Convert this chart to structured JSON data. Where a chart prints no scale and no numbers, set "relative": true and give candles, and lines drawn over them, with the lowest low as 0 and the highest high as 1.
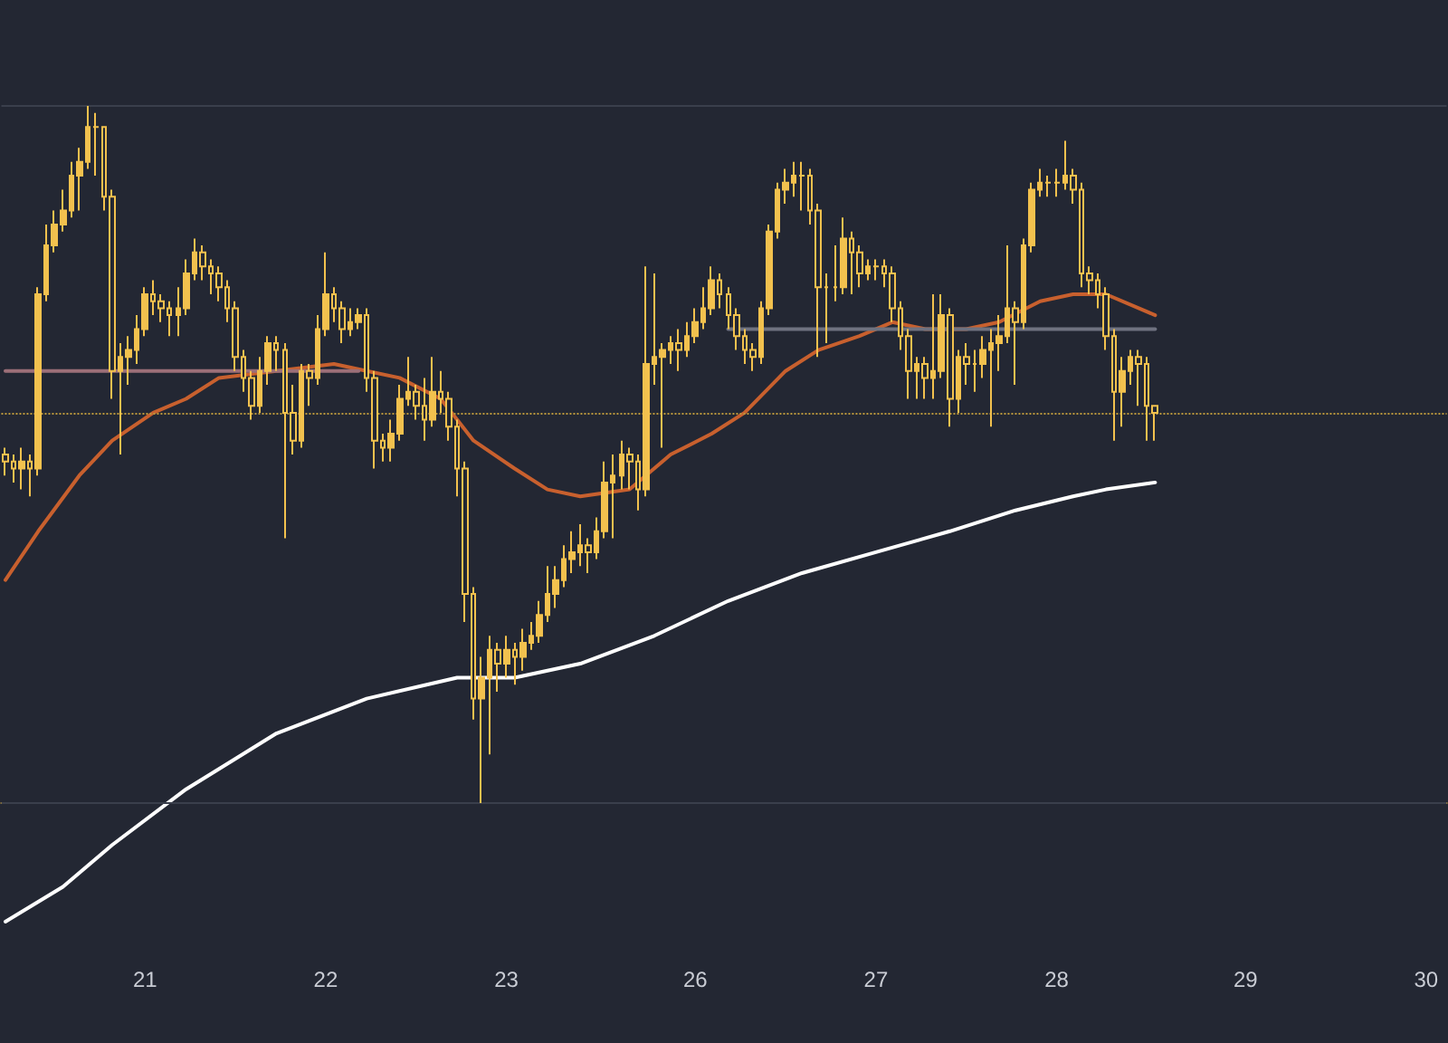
{
  "chart_data": {
    "type": "candlestick",
    "relative": true,
    "categories": [
      null,
      null,
      null,
      null,
      null,
      null,
      null,
      null,
      null,
      null,
      null,
      null,
      null,
      null,
      null,
      null,
      null,
      "21",
      null,
      null,
      null,
      null,
      null,
      null,
      null,
      null,
      null,
      null,
      null,
      null,
      null,
      null,
      null,
      null,
      null,
      null,
      null,
      null,
      null,
      "22",
      null,
      null,
      null,
      null,
      null,
      null,
      null,
      null,
      null,
      null,
      null,
      null,
      null,
      null,
      null,
      null,
      null,
      null,
      null,
      null,
      null,
      "23",
      null,
      null,
      null,
      null,
      null,
      null,
      null,
      null,
      null,
      null,
      null,
      null,
      null,
      null,
      null,
      null,
      null,
      null,
      null,
      null,
      null,
      null,
      "26",
      null,
      null,
      null,
      null,
      null,
      null,
      null,
      null,
      null,
      null,
      null,
      null,
      null,
      null,
      null,
      null,
      null,
      null,
      null,
      null,
      null,
      "27",
      null,
      null,
      null,
      null,
      null,
      null,
      null,
      null,
      null,
      null,
      null,
      null,
      null,
      null,
      null,
      null,
      null,
      null,
      null,
      null,
      null,
      "28",
      null,
      null,
      null,
      null,
      null,
      null,
      null,
      null,
      null,
      null,
      null,
      null,
      null,
      null,
      null,
      null,
      null,
      null,
      null,
      null,
      null,
      null,
      "29",
      null,
      null,
      null,
      null,
      null,
      null,
      null,
      null,
      null,
      null,
      null,
      null,
      null,
      null,
      null,
      null,
      null,
      null,
      null,
      null,
      null,
      "30",
      null,
      null
    ],
    "ohlc": [
      [
        0.5,
        0.51,
        0.47,
        0.49
      ],
      [
        0.49,
        0.5,
        0.46,
        0.48
      ],
      [
        0.48,
        0.51,
        0.45,
        0.49
      ],
      [
        0.49,
        0.5,
        0.44,
        0.48
      ],
      [
        0.48,
        0.74,
        0.47,
        0.73
      ],
      [
        0.73,
        0.83,
        0.72,
        0.8
      ],
      [
        0.8,
        0.85,
        0.79,
        0.83
      ],
      [
        0.83,
        0.88,
        0.82,
        0.85
      ],
      [
        0.85,
        0.92,
        0.84,
        0.9
      ],
      [
        0.9,
        0.94,
        0.85,
        0.92
      ],
      [
        0.92,
        1.0,
        0.91,
        0.97
      ],
      [
        0.97,
        0.99,
        0.9,
        0.97
      ],
      [
        0.97,
        0.97,
        0.85,
        0.87
      ],
      [
        0.87,
        0.88,
        0.58,
        0.62
      ],
      [
        0.62,
        0.66,
        0.5,
        0.64
      ],
      [
        0.64,
        0.67,
        0.6,
        0.65
      ],
      [
        0.65,
        0.7,
        0.63,
        0.68
      ],
      [
        0.68,
        0.74,
        0.67,
        0.73
      ],
      [
        0.73,
        0.75,
        0.7,
        0.72
      ],
      [
        0.72,
        0.73,
        0.69,
        0.71
      ],
      [
        0.71,
        0.72,
        0.67,
        0.7
      ],
      [
        0.7,
        0.74,
        0.67,
        0.71
      ],
      [
        0.71,
        0.78,
        0.7,
        0.76
      ],
      [
        0.76,
        0.81,
        0.75,
        0.79
      ],
      [
        0.79,
        0.8,
        0.75,
        0.77
      ],
      [
        0.77,
        0.78,
        0.73,
        0.76
      ],
      [
        0.76,
        0.77,
        0.72,
        0.74
      ],
      [
        0.74,
        0.75,
        0.69,
        0.71
      ],
      [
        0.71,
        0.72,
        0.62,
        0.64
      ],
      [
        0.64,
        0.65,
        0.59,
        0.61
      ],
      [
        0.61,
        0.62,
        0.55,
        0.57
      ],
      [
        0.57,
        0.64,
        0.56,
        0.62
      ],
      [
        0.62,
        0.67,
        0.6,
        0.66
      ],
      [
        0.66,
        0.67,
        0.62,
        0.65
      ],
      [
        0.65,
        0.66,
        0.38,
        0.56
      ],
      [
        0.56,
        0.6,
        0.5,
        0.52
      ],
      [
        0.52,
        0.63,
        0.51,
        0.62
      ],
      [
        0.62,
        0.63,
        0.57,
        0.61
      ],
      [
        0.61,
        0.7,
        0.6,
        0.68
      ],
      [
        0.68,
        0.79,
        0.67,
        0.73
      ],
      [
        0.73,
        0.74,
        0.69,
        0.71
      ],
      [
        0.71,
        0.72,
        0.66,
        0.68
      ],
      [
        0.68,
        0.71,
        0.67,
        0.69
      ],
      [
        0.69,
        0.71,
        0.68,
        0.7
      ],
      [
        0.7,
        0.71,
        0.59,
        0.61
      ],
      [
        0.61,
        0.62,
        0.48,
        0.52
      ],
      [
        0.52,
        0.53,
        0.49,
        0.51
      ],
      [
        0.51,
        0.55,
        0.49,
        0.53
      ],
      [
        0.53,
        0.6,
        0.52,
        0.58
      ],
      [
        0.58,
        0.64,
        0.57,
        0.59
      ],
      [
        0.59,
        0.6,
        0.55,
        0.57
      ],
      [
        0.57,
        0.61,
        0.52,
        0.55
      ],
      [
        0.55,
        0.64,
        0.54,
        0.59
      ],
      [
        0.59,
        0.62,
        0.56,
        0.58
      ],
      [
        0.58,
        0.59,
        0.52,
        0.54
      ],
      [
        0.54,
        0.55,
        0.44,
        0.48
      ],
      [
        0.48,
        0.49,
        0.26,
        0.3
      ],
      [
        0.3,
        0.31,
        0.12,
        0.15
      ],
      [
        0.15,
        0.21,
        0.0,
        0.18
      ],
      [
        0.18,
        0.24,
        0.07,
        0.22
      ],
      [
        0.22,
        0.23,
        0.16,
        0.2
      ],
      [
        0.2,
        0.24,
        0.18,
        0.22
      ],
      [
        0.22,
        0.23,
        0.17,
        0.21
      ],
      [
        0.21,
        0.25,
        0.19,
        0.23
      ],
      [
        0.23,
        0.26,
        0.22,
        0.24
      ],
      [
        0.24,
        0.29,
        0.23,
        0.27
      ],
      [
        0.27,
        0.34,
        0.26,
        0.3
      ],
      [
        0.3,
        0.34,
        0.28,
        0.32
      ],
      [
        0.32,
        0.37,
        0.31,
        0.35
      ],
      [
        0.35,
        0.39,
        0.33,
        0.36
      ],
      [
        0.36,
        0.4,
        0.34,
        0.37
      ],
      [
        0.37,
        0.38,
        0.33,
        0.36
      ],
      [
        0.36,
        0.41,
        0.35,
        0.39
      ],
      [
        0.39,
        0.49,
        0.38,
        0.46
      ],
      [
        0.46,
        0.5,
        0.38,
        0.47
      ],
      [
        0.47,
        0.52,
        0.45,
        0.5
      ],
      [
        0.5,
        0.51,
        0.45,
        0.49
      ],
      [
        0.49,
        0.5,
        0.42,
        0.45
      ],
      [
        0.45,
        0.77,
        0.44,
        0.63
      ],
      [
        0.63,
        0.76,
        0.6,
        0.64
      ],
      [
        0.64,
        0.66,
        0.51,
        0.65
      ],
      [
        0.65,
        0.67,
        0.63,
        0.66
      ],
      [
        0.66,
        0.68,
        0.62,
        0.65
      ],
      [
        0.65,
        0.69,
        0.64,
        0.67
      ],
      [
        0.67,
        0.71,
        0.66,
        0.69
      ],
      [
        0.69,
        0.74,
        0.68,
        0.71
      ],
      [
        0.71,
        0.77,
        0.7,
        0.75
      ],
      [
        0.75,
        0.76,
        0.71,
        0.73
      ],
      [
        0.73,
        0.74,
        0.68,
        0.7
      ],
      [
        0.7,
        0.71,
        0.65,
        0.67
      ],
      [
        0.67,
        0.68,
        0.63,
        0.65
      ],
      [
        0.65,
        0.66,
        0.62,
        0.64
      ],
      [
        0.64,
        0.72,
        0.63,
        0.71
      ],
      [
        0.71,
        0.83,
        0.7,
        0.82
      ],
      [
        0.82,
        0.89,
        0.81,
        0.88
      ],
      [
        0.88,
        0.91,
        0.86,
        0.89
      ],
      [
        0.89,
        0.92,
        0.87,
        0.9
      ],
      [
        0.9,
        0.92,
        0.85,
        0.9
      ],
      [
        0.9,
        0.91,
        0.83,
        0.85
      ],
      [
        0.85,
        0.86,
        0.64,
        0.74
      ],
      [
        0.74,
        0.76,
        0.66,
        0.74
      ],
      [
        0.74,
        0.8,
        0.72,
        0.74
      ],
      [
        0.74,
        0.84,
        0.73,
        0.81
      ],
      [
        0.81,
        0.82,
        0.73,
        0.79
      ],
      [
        0.79,
        0.8,
        0.74,
        0.76
      ],
      [
        0.76,
        0.78,
        0.75,
        0.77
      ],
      [
        0.77,
        0.78,
        0.75,
        0.77
      ],
      [
        0.77,
        0.78,
        0.74,
        0.76
      ],
      [
        0.76,
        0.77,
        0.69,
        0.71
      ],
      [
        0.71,
        0.72,
        0.65,
        0.67
      ],
      [
        0.67,
        0.68,
        0.58,
        0.62
      ],
      [
        0.62,
        0.64,
        0.58,
        0.63
      ],
      [
        0.63,
        0.64,
        0.58,
        0.61
      ],
      [
        0.61,
        0.73,
        0.58,
        0.62
      ],
      [
        0.62,
        0.73,
        0.61,
        0.7
      ],
      [
        0.7,
        0.71,
        0.54,
        0.58
      ],
      [
        0.58,
        0.65,
        0.56,
        0.64
      ],
      [
        0.64,
        0.66,
        0.6,
        0.63
      ],
      [
        0.63,
        0.65,
        0.59,
        0.63
      ],
      [
        0.63,
        0.67,
        0.61,
        0.65
      ],
      [
        0.65,
        0.68,
        0.54,
        0.66
      ],
      [
        0.66,
        0.7,
        0.62,
        0.67
      ],
      [
        0.67,
        0.8,
        0.66,
        0.71
      ],
      [
        0.71,
        0.72,
        0.6,
        0.69
      ],
      [
        0.69,
        0.81,
        0.68,
        0.8
      ],
      [
        0.8,
        0.89,
        0.79,
        0.88
      ],
      [
        0.88,
        0.91,
        0.87,
        0.89
      ],
      [
        0.89,
        0.9,
        0.87,
        0.89
      ],
      [
        0.89,
        0.91,
        0.87,
        0.89
      ],
      [
        0.89,
        0.95,
        0.88,
        0.9
      ],
      [
        0.9,
        0.91,
        0.86,
        0.88
      ],
      [
        0.88,
        0.89,
        0.74,
        0.76
      ],
      [
        0.76,
        0.77,
        0.73,
        0.75
      ],
      [
        0.75,
        0.76,
        0.71,
        0.73
      ],
      [
        0.73,
        0.74,
        0.65,
        0.67
      ],
      [
        0.67,
        0.68,
        0.52,
        0.59
      ],
      [
        0.59,
        0.64,
        0.54,
        0.62
      ],
      [
        0.62,
        0.65,
        0.6,
        0.64
      ],
      [
        0.64,
        0.65,
        0.57,
        0.63
      ],
      [
        0.63,
        0.64,
        0.52,
        0.57
      ],
      [
        0.57,
        0.57,
        0.52,
        0.56
      ],
      null,
      null,
      null,
      null,
      null,
      null,
      null,
      null,
      null,
      null,
      null,
      null,
      null,
      null,
      null,
      null,
      null,
      null,
      null,
      null,
      null,
      null,
      null,
      null,
      null,
      null,
      null,
      null,
      null,
      null,
      null,
      null,
      null,
      null,
      null
    ],
    "color": "#f2c14e",
    "series": [
      {
        "type": "line",
        "color": "#c8602e",
        "values": [
          0.32,
          null,
          null,
          null,
          0.39,
          null,
          null,
          null,
          null,
          0.47,
          null,
          null,
          null,
          0.52,
          null,
          null,
          null,
          null,
          0.56,
          null,
          null,
          null,
          0.58,
          null,
          null,
          null,
          0.61,
          null,
          null,
          null,
          null,
          null,
          null,
          0.62,
          null,
          null,
          null,
          null,
          null,
          null,
          0.63,
          null,
          null,
          null,
          0.62,
          null,
          null,
          null,
          0.61,
          null,
          null,
          null,
          null,
          0.58,
          null,
          null,
          null,
          0.52,
          null,
          null,
          null,
          null,
          0.48,
          null,
          null,
          null,
          0.45,
          null,
          null,
          null,
          0.44,
          null,
          null,
          null,
          null,
          null,
          0.45,
          null,
          null,
          null,
          null,
          0.5,
          null,
          null,
          null,
          null,
          0.53,
          null,
          null,
          null,
          0.56,
          null,
          null,
          null,
          null,
          0.62,
          null,
          null,
          null,
          0.65,
          null,
          null,
          null,
          null,
          0.67,
          null,
          null,
          null,
          0.69,
          null,
          null,
          null,
          0.68,
          null,
          null,
          null,
          null,
          0.68,
          null,
          null,
          null,
          0.69,
          null,
          null,
          null,
          null,
          0.72,
          null,
          null,
          null,
          0.73,
          null,
          null,
          null,
          0.73,
          null,
          null,
          null,
          null,
          null,
          0.7,
          null,
          null,
          null,
          null,
          null,
          null,
          null,
          null,
          null,
          null,
          null,
          null,
          null,
          null,
          null,
          null,
          null,
          null,
          null,
          null,
          null,
          null,
          null,
          null,
          null,
          null,
          null,
          null,
          null,
          null,
          null,
          null,
          null,
          null,
          null
        ]
      },
      {
        "type": "line",
        "color": "#ffffff",
        "values": [
          -0.17,
          null,
          null,
          null,
          null,
          null,
          null,
          -0.12,
          null,
          null,
          null,
          null,
          null,
          -0.06,
          null,
          null,
          null,
          null,
          null,
          null,
          null,
          null,
          0.02,
          null,
          null,
          null,
          null,
          null,
          null,
          null,
          null,
          null,
          null,
          0.1,
          null,
          null,
          null,
          null,
          null,
          null,
          null,
          null,
          null,
          null,
          0.15,
          null,
          null,
          null,
          null,
          null,
          null,
          null,
          null,
          null,
          null,
          0.18,
          null,
          null,
          null,
          null,
          null,
          null,
          0.18,
          null,
          null,
          null,
          null,
          null,
          null,
          null,
          0.2,
          null,
          null,
          null,
          null,
          null,
          null,
          null,
          null,
          0.24,
          null,
          null,
          null,
          null,
          null,
          null,
          null,
          null,
          0.29,
          null,
          null,
          null,
          null,
          null,
          null,
          null,
          null,
          0.33,
          null,
          null,
          null,
          null,
          null,
          null,
          null,
          null,
          0.36,
          null,
          null,
          null,
          null,
          null,
          null,
          null,
          null,
          0.39,
          null,
          null,
          null,
          null,
          null,
          null,
          null,
          0.42,
          null,
          null,
          null,
          null,
          null,
          null,
          0.44,
          null,
          null,
          null,
          0.45,
          null,
          null,
          null,
          null,
          null,
          0.46,
          null,
          null,
          null,
          null,
          null,
          null,
          null,
          null,
          null,
          null,
          null,
          null,
          null,
          null,
          null,
          null,
          null,
          null,
          null,
          null,
          null,
          null,
          null,
          null,
          null,
          null,
          null,
          null,
          null,
          null,
          null,
          null,
          null,
          null,
          null
        ]
      },
      {
        "type": "line",
        "color": "#9c6f78",
        "values": [
          0.62,
          null,
          null,
          null,
          null,
          null,
          null,
          null,
          null,
          null,
          null,
          null,
          null,
          null,
          null,
          null,
          null,
          null,
          null,
          null,
          null,
          null,
          null,
          null,
          null,
          null,
          null,
          null,
          null,
          null,
          null,
          null,
          null,
          null,
          null,
          null,
          null,
          null,
          null,
          null,
          null,
          null,
          null,
          0.62,
          null,
          null,
          null,
          null,
          null,
          null,
          null,
          null,
          null,
          null,
          null,
          null,
          null,
          null,
          null,
          null,
          null,
          null,
          null,
          null,
          null,
          null,
          null,
          null,
          null,
          null,
          null,
          null,
          null,
          null,
          null,
          null,
          null,
          null,
          null,
          null,
          null,
          null,
          null,
          null,
          null,
          null,
          null,
          null,
          null,
          null,
          null,
          null,
          null,
          null,
          null,
          null,
          null,
          null,
          null,
          null,
          null,
          null,
          null,
          null,
          null,
          null,
          null,
          null,
          null,
          null,
          null,
          null,
          null,
          null,
          null,
          null,
          null,
          null,
          null,
          null,
          null,
          null,
          null,
          null,
          null,
          null,
          null,
          null,
          null,
          null,
          null,
          null,
          null,
          null,
          null,
          null,
          null,
          null,
          null,
          null,
          null,
          null,
          null,
          null,
          null,
          null,
          null,
          null,
          null,
          null,
          null,
          null,
          null,
          null,
          null,
          null,
          null,
          null,
          null,
          null,
          null,
          null,
          null,
          null,
          null,
          null,
          null,
          null,
          null,
          null,
          null,
          null,
          null,
          null,
          null,
          null
        ]
      },
      {
        "type": "line",
        "color": "#6f7280",
        "values": [
          null,
          null,
          null,
          null,
          null,
          null,
          null,
          null,
          null,
          null,
          null,
          null,
          null,
          null,
          null,
          null,
          null,
          null,
          null,
          null,
          null,
          null,
          null,
          null,
          null,
          null,
          null,
          null,
          null,
          null,
          null,
          null,
          null,
          null,
          null,
          null,
          null,
          null,
          null,
          null,
          null,
          null,
          null,
          null,
          null,
          null,
          null,
          null,
          null,
          null,
          null,
          null,
          null,
          null,
          null,
          null,
          null,
          null,
          null,
          null,
          null,
          null,
          null,
          null,
          null,
          null,
          null,
          null,
          null,
          null,
          null,
          null,
          null,
          null,
          null,
          null,
          null,
          null,
          null,
          null,
          null,
          null,
          null,
          null,
          null,
          null,
          null,
          null,
          0.68,
          null,
          null,
          null,
          null,
          null,
          null,
          null,
          null,
          null,
          null,
          null,
          null,
          null,
          null,
          null,
          null,
          null,
          null,
          null,
          null,
          null,
          null,
          null,
          null,
          null,
          null,
          null,
          null,
          null,
          null,
          null,
          null,
          null,
          null,
          null,
          null,
          null,
          null,
          null,
          null,
          null,
          null,
          null,
          null,
          null,
          null,
          null,
          null,
          null,
          null,
          null,
          0.68,
          null,
          null,
          null,
          null,
          null,
          null,
          null,
          null,
          null,
          null,
          null,
          null,
          null,
          null,
          null,
          null,
          null,
          null,
          null,
          null,
          null,
          null,
          null,
          null,
          null,
          null,
          null,
          null,
          null,
          null,
          null,
          null,
          null,
          null,
          null
        ]
      }
    ],
    "ref_lines": [
      {
        "axis": "y",
        "value": 0.56,
        "color": "#b8963c",
        "line_style": "dotted"
      },
      {
        "axis": "y",
        "value": 1.0,
        "color": "#3a3f4c",
        "line_style": "solid"
      },
      {
        "axis": "y",
        "value": 0.0,
        "color": "#3a3f4c",
        "line_style": "solid"
      }
    ]
  }
}
